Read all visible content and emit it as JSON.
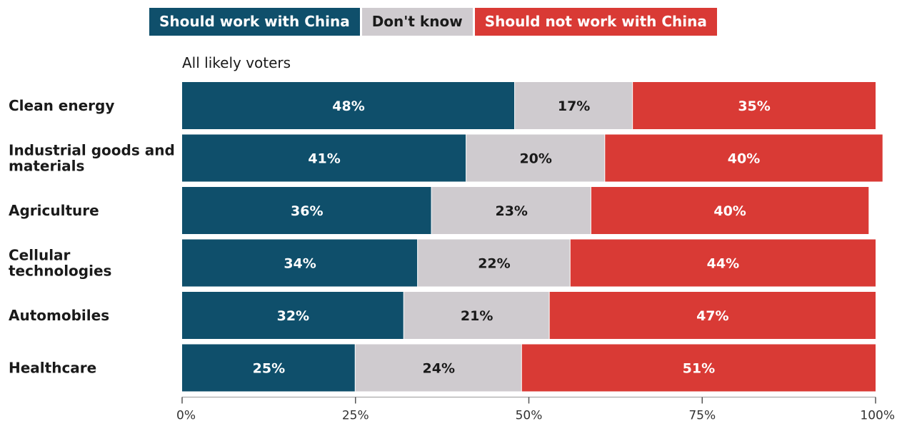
{
  "chart_data": {
    "type": "bar",
    "orientation": "horizontal",
    "stacked": true,
    "subtitle": "All likely voters",
    "categories": [
      [
        "Clean energy"
      ],
      [
        "Industrial goods and",
        "materials"
      ],
      [
        "Agriculture"
      ],
      [
        "Cellular",
        "technologies"
      ],
      [
        "Automobiles"
      ],
      [
        "Healthcare"
      ]
    ],
    "series": [
      {
        "name": "Should work with China",
        "color": "#0f4f6b",
        "text_color": "#ffffff",
        "values": [
          48,
          41,
          36,
          34,
          32,
          25
        ]
      },
      {
        "name": "Don't know",
        "color": "#cfcbcf",
        "text_color": "#1a1a1a",
        "values": [
          17,
          20,
          23,
          22,
          21,
          24
        ]
      },
      {
        "name": "Should not work with China",
        "color": "#d93a35",
        "text_color": "#ffffff",
        "values": [
          35,
          40,
          40,
          44,
          47,
          51
        ]
      }
    ],
    "xlim": [
      0,
      100
    ],
    "x_ticks": [
      0,
      25,
      50,
      75,
      100
    ],
    "x_tick_labels": [
      "0%",
      "25%",
      "50%",
      "75%",
      "100%"
    ],
    "legend_position": "top",
    "grid": false
  }
}
